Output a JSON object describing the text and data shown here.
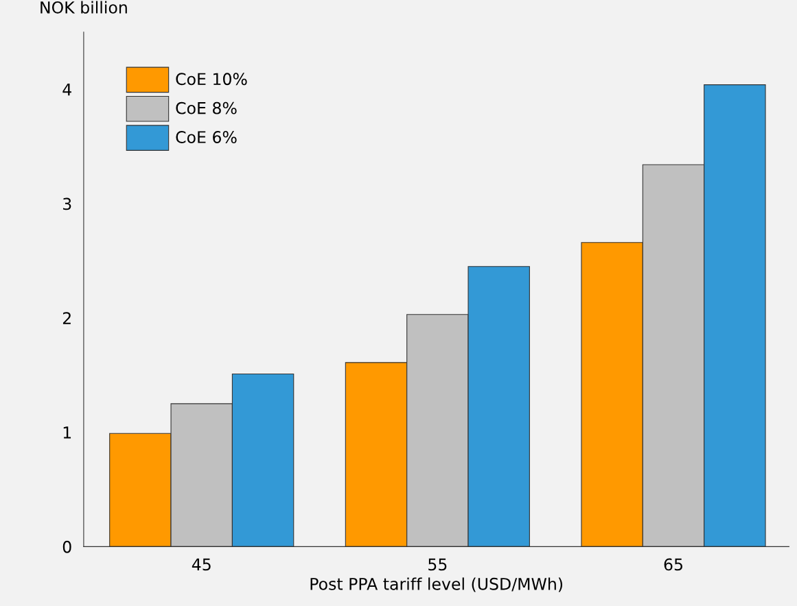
{
  "chart_data": {
    "type": "bar",
    "xlabel": "Post PPA tariff level (USD/MWh)",
    "ylabel": "NOK billion",
    "categories": [
      "45",
      "55",
      "65"
    ],
    "series": [
      {
        "name": "CoE 10%",
        "color": "#ff9900",
        "values": [
          0.99,
          1.61,
          2.66
        ]
      },
      {
        "name": "CoE 8%",
        "color": "#c0c0c0",
        "values": [
          1.25,
          2.03,
          3.34
        ]
      },
      {
        "name": "CoE 6%",
        "color": "#3399d6",
        "values": [
          1.51,
          2.45,
          4.04
        ]
      }
    ],
    "ylim": [
      0,
      4.5
    ],
    "yticks": [
      0,
      1,
      2,
      3,
      4
    ],
    "grid": false,
    "legend": "top left"
  }
}
